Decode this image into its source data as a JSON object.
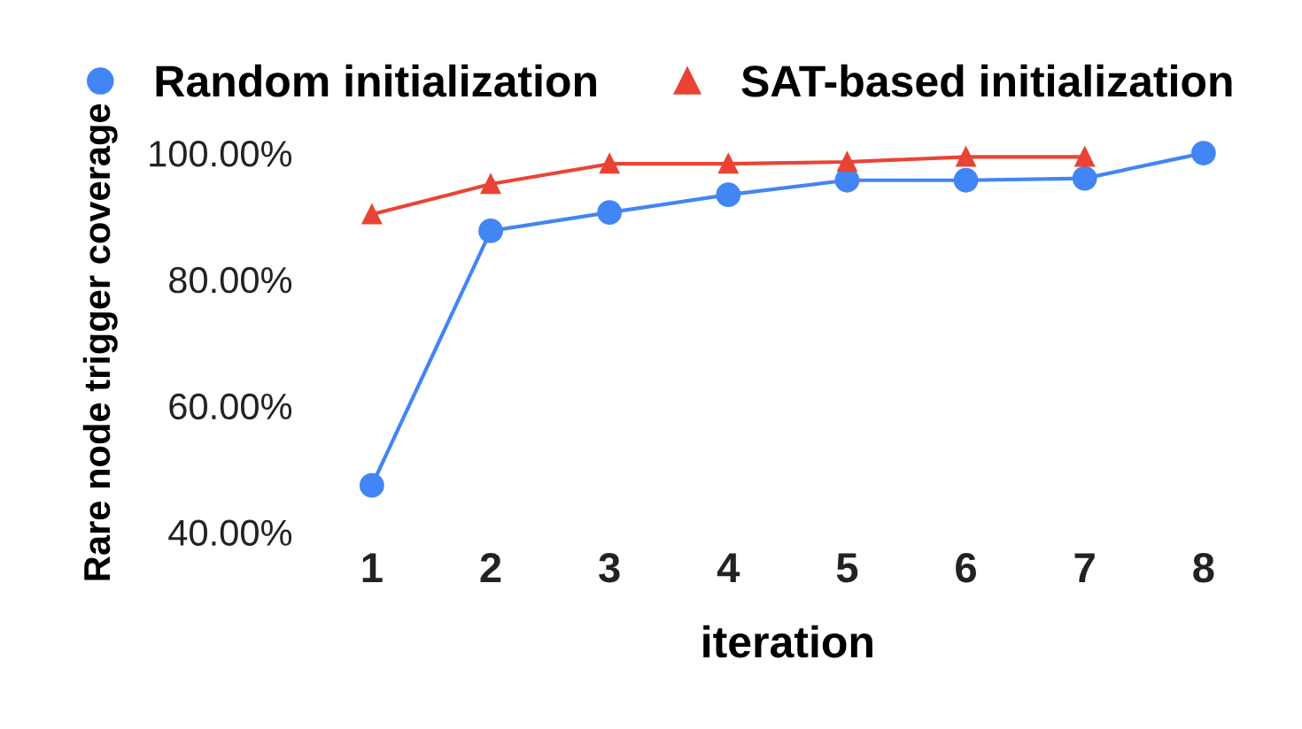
{
  "chart_data": {
    "type": "line",
    "xlabel": "iteration",
    "ylabel": "Rare node trigger coverage",
    "categories": [
      "1",
      "2",
      "3",
      "4",
      "5",
      "6",
      "7",
      "8"
    ],
    "series": [
      {
        "name": "Random initialization",
        "color": "#4285f4",
        "marker": "circle",
        "values": [
          47.4,
          87.7,
          90.6,
          93.4,
          95.7,
          95.7,
          96.0,
          100.0
        ]
      },
      {
        "name": "SAT-based initialization",
        "color": "#ea4335",
        "marker": "triangle",
        "values": [
          90.3,
          95.1,
          98.3,
          98.3,
          98.6,
          99.4,
          99.4,
          null
        ]
      }
    ],
    "ylim": [
      40,
      100
    ],
    "yticks": [
      {
        "value": 40,
        "label": "40.00%"
      },
      {
        "value": 60,
        "label": "60.00%"
      },
      {
        "value": 80,
        "label": "80.00%"
      },
      {
        "value": 100,
        "label": "100.00%"
      }
    ],
    "grid": false,
    "legend": "top",
    "line_style": "solid"
  }
}
